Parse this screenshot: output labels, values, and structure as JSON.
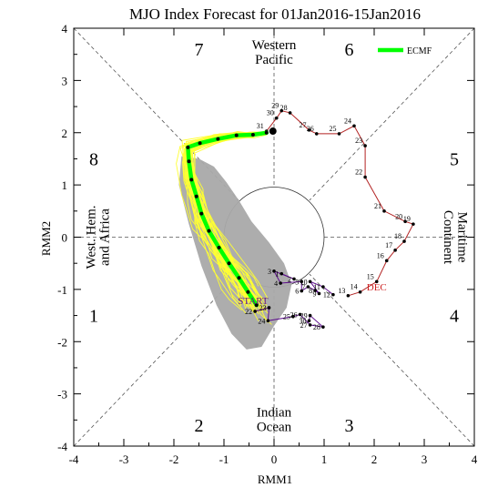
{
  "colors": {
    "observed_path": "#b22222",
    "recent_path": "#5a0a8a",
    "ensemble": "#ffff33",
    "ensemble_spread": "#a9a9a9",
    "ecmf_mean": "#00ff00",
    "start_label": "#6a1b7a",
    "dec_label": "#cc2222"
  },
  "chart_data": {
    "type": "line",
    "title": "MJO Index Forecast for 01Jan2016-15Jan2016",
    "xlabel": "RMM1",
    "ylabel": "RMM2",
    "xlim": [
      -4,
      4
    ],
    "ylim": [
      -4,
      4
    ],
    "xticks": [
      "-4",
      "-3",
      "-2",
      "-1",
      "0",
      "1",
      "2",
      "3",
      "4"
    ],
    "yticks": [
      "-4",
      "-3",
      "-2",
      "-1",
      "0",
      "1",
      "2",
      "3",
      "4"
    ],
    "legend": {
      "position": "top-right",
      "entries": [
        "ECMF"
      ]
    },
    "phases": [
      {
        "label": "1",
        "x": -3.6,
        "y": -1.5
      },
      {
        "label": "2",
        "x": -1.5,
        "y": -3.6
      },
      {
        "label": "3",
        "x": 1.5,
        "y": -3.6
      },
      {
        "label": "4",
        "x": 3.6,
        "y": -1.5
      },
      {
        "label": "5",
        "x": 3.6,
        "y": 1.5
      },
      {
        "label": "6",
        "x": 1.5,
        "y": 3.6
      },
      {
        "label": "7",
        "x": -1.5,
        "y": 3.6
      },
      {
        "label": "8",
        "x": -3.6,
        "y": 1.5
      }
    ],
    "regions": {
      "top": [
        "Western",
        "Pacific"
      ],
      "bottom": [
        "Indian",
        "Ocean"
      ],
      "left": [
        "West. Hem.",
        "and Africa"
      ],
      "right": [
        "Maritime",
        "Continent"
      ]
    },
    "annotations": {
      "start": "START",
      "month": "DEC"
    },
    "observed": [
      {
        "day": "13",
        "x": 1.48,
        "y": -1.12
      },
      {
        "day": "14",
        "x": 1.72,
        "y": -1.05
      },
      {
        "day": "15",
        "x": 2.05,
        "y": -0.85
      },
      {
        "day": "16",
        "x": 2.25,
        "y": -0.45
      },
      {
        "day": "17",
        "x": 2.42,
        "y": -0.25
      },
      {
        "day": "18",
        "x": 2.6,
        "y": -0.08
      },
      {
        "day": "19",
        "x": 2.78,
        "y": 0.25
      },
      {
        "day": "20",
        "x": 2.62,
        "y": 0.3
      },
      {
        "day": "21",
        "x": 2.2,
        "y": 0.5
      },
      {
        "day": "22",
        "x": 1.82,
        "y": 1.15
      },
      {
        "day": "23",
        "x": 1.82,
        "y": 1.75
      },
      {
        "day": "24",
        "x": 1.6,
        "y": 2.13
      },
      {
        "day": "25",
        "x": 1.3,
        "y": 1.98
      },
      {
        "day": "26",
        "x": 0.85,
        "y": 1.98
      },
      {
        "day": "27",
        "x": 0.7,
        "y": 2.05
      },
      {
        "day": "28",
        "x": 0.32,
        "y": 2.38
      },
      {
        "day": "29",
        "x": 0.15,
        "y": 2.42
      },
      {
        "day": "30",
        "x": 0.05,
        "y": 2.28
      },
      {
        "day": "31",
        "x": -0.15,
        "y": 2.03
      }
    ],
    "recent": [
      {
        "day": "1",
        "x": 0.15,
        "y": -0.7
      },
      {
        "day": "2",
        "x": 0.4,
        "y": -0.8
      },
      {
        "day": "3",
        "x": 0.0,
        "y": -0.65
      },
      {
        "day": "4",
        "x": 0.13,
        "y": -0.88
      },
      {
        "day": "5",
        "x": 0.55,
        "y": -0.85
      },
      {
        "day": "6",
        "x": 0.55,
        "y": -1.03
      },
      {
        "day": "7",
        "x": 0.68,
        "y": -0.95
      },
      {
        "day": "8",
        "x": 0.82,
        "y": -1.02
      },
      {
        "day": "9",
        "x": 0.9,
        "y": -1.08
      },
      {
        "day": "10",
        "x": 0.72,
        "y": -0.85
      },
      {
        "day": "11",
        "x": 0.98,
        "y": -0.95
      },
      {
        "day": "12",
        "x": 1.18,
        "y": -1.1
      },
      {
        "day": "22",
        "x": -0.38,
        "y": -1.42
      },
      {
        "day": "23",
        "x": -0.1,
        "y": -1.35
      },
      {
        "day": "24",
        "x": -0.12,
        "y": -1.6
      },
      {
        "day": "25",
        "x": 0.38,
        "y": -1.52
      },
      {
        "day": "26",
        "x": 0.52,
        "y": -1.48
      },
      {
        "day": "27",
        "x": 0.72,
        "y": -1.68
      },
      {
        "day": "28",
        "x": 0.98,
        "y": -1.72
      },
      {
        "day": "29",
        "x": 0.72,
        "y": -1.5
      },
      {
        "day": "30",
        "x": 0.7,
        "y": -1.6
      }
    ],
    "forecast_mean": {
      "name": "ECMF",
      "x": [
        -0.15,
        -0.42,
        -0.75,
        -1.12,
        -1.48,
        -1.72,
        -1.7,
        -1.65,
        -1.55,
        -1.45,
        -1.3,
        -1.1,
        -0.9,
        -0.7,
        -0.52,
        -0.35
      ],
      "y": [
        2.0,
        1.96,
        1.95,
        1.88,
        1.8,
        1.72,
        1.45,
        1.1,
        0.78,
        0.45,
        0.12,
        -0.2,
        -0.5,
        -0.78,
        -1.05,
        -1.3
      ]
    },
    "forecast_spread": {
      "x": [
        -1.85,
        -1.5,
        -1.2,
        -0.95,
        -0.7,
        -0.45,
        -0.1,
        0.2,
        0.35,
        0.25,
        0.0,
        -0.25,
        -0.55,
        -0.85,
        -1.15,
        -1.45,
        -1.7,
        -1.9
      ],
      "y": [
        1.55,
        1.5,
        1.35,
        1.05,
        0.7,
        0.3,
        -0.1,
        -0.5,
        -0.9,
        -1.35,
        -1.7,
        -2.1,
        -2.15,
        -1.85,
        -1.3,
        -0.55,
        0.25,
        1.0
      ]
    }
  }
}
